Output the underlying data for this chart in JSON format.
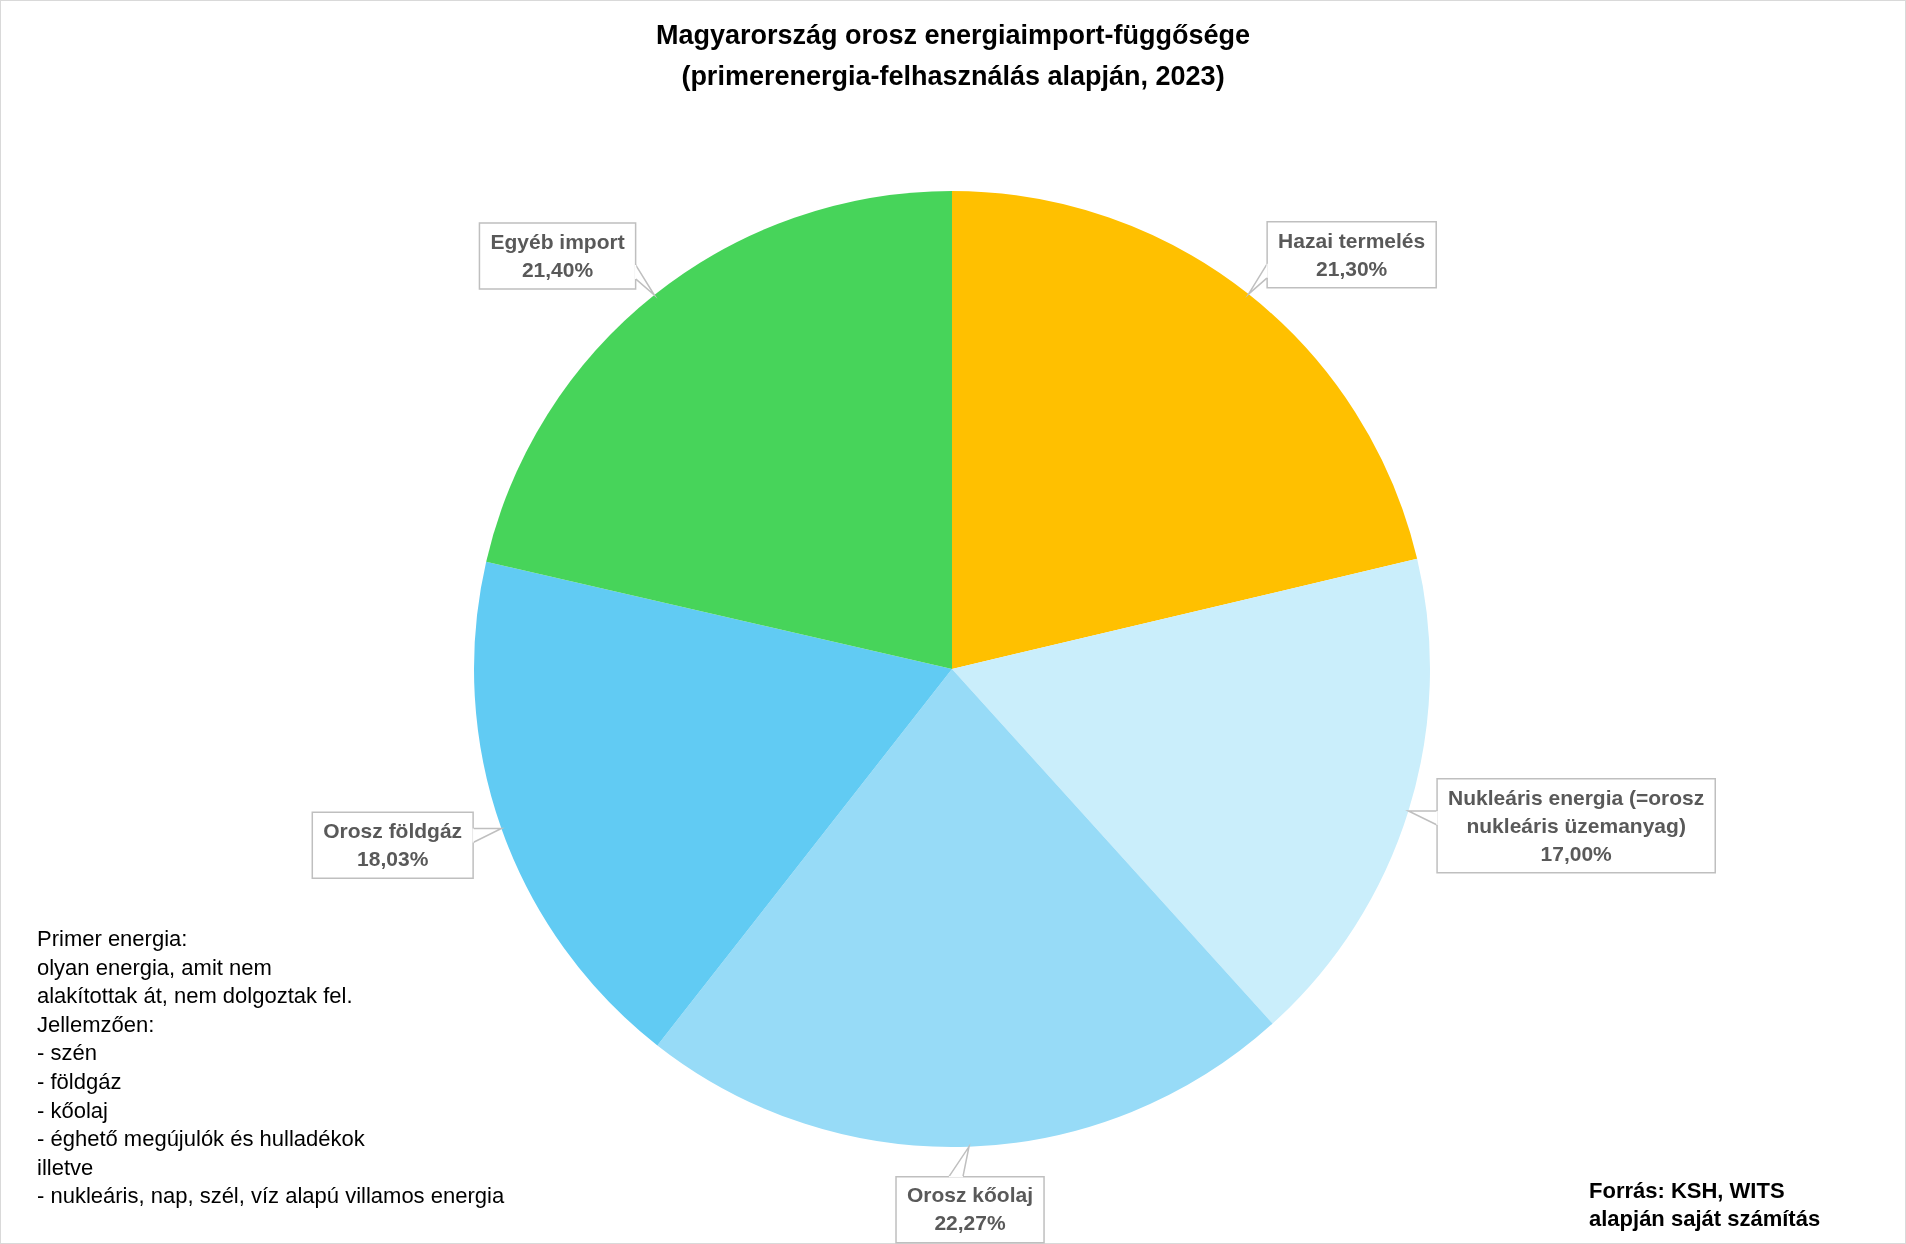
{
  "chart_data": {
    "type": "pie",
    "title": "Magyarország orosz energiaimport-függősége",
    "subtitle": "(primerenergia-felhasználás alapján, 2023)",
    "categories": [
      "Hazai termelés",
      "Nukleáris energia (=orosz nukleáris üzemanyag)",
      "Orosz kőolaj",
      "Orosz földgáz",
      "Egyéb import"
    ],
    "values": [
      21.3,
      17,
      22.27,
      18.03,
      21.4
    ],
    "value_labels": [
      "21,30%",
      "17,00%",
      "22,27%",
      "18,03%",
      "21,40%"
    ],
    "colors": [
      "#ffc000",
      "#caeefb",
      "#97dbf7",
      "#61cbf3",
      "#47d45a"
    ],
    "annotations": [
      "Primer energia:\nolyan energia, amit nem\nalakítottak át, nem dolgoztak fel.\nJellemzően:\n- szén\n- földgáz\n- kőolaj\n- éghető megújulók és hulladékok\nilletve\n- nukleáris, nap, szél, víz alapú villamos energia",
      "Forrás: KSH, WITS\nalapján saját számítás"
    ]
  }
}
